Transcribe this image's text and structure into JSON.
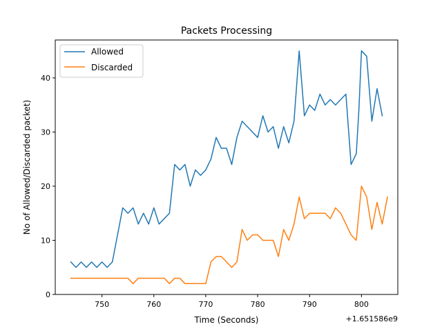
{
  "chart_data": {
    "type": "line",
    "title": "Packets Processing",
    "xlabel": "Time (Seconds)",
    "ylabel": "No of Allowed/Discarded packet)",
    "x_offset_label": "+1.651586e9",
    "xlim": [
      741,
      807
    ],
    "ylim": [
      0,
      47
    ],
    "xticks": [
      750,
      760,
      770,
      780,
      790,
      800
    ],
    "yticks": [
      0,
      10,
      20,
      30,
      40
    ],
    "grid": false,
    "legend_position": "upper left",
    "series": [
      {
        "name": "Allowed",
        "color": "#1f77b4",
        "points": [
          [
            744,
            6
          ],
          [
            745,
            5
          ],
          [
            746,
            6
          ],
          [
            747,
            5
          ],
          [
            748,
            6
          ],
          [
            749,
            5
          ],
          [
            750,
            6
          ],
          [
            751,
            5
          ],
          [
            752,
            6
          ],
          [
            754,
            16
          ],
          [
            755,
            15
          ],
          [
            756,
            16
          ],
          [
            757,
            13
          ],
          [
            758,
            15
          ],
          [
            759,
            13
          ],
          [
            760,
            16
          ],
          [
            761,
            13
          ],
          [
            763,
            15
          ],
          [
            764,
            24
          ],
          [
            765,
            23
          ],
          [
            766,
            24
          ],
          [
            767,
            20
          ],
          [
            768,
            23
          ],
          [
            769,
            22
          ],
          [
            770,
            23
          ],
          [
            771,
            25
          ],
          [
            772,
            29
          ],
          [
            773,
            27
          ],
          [
            774,
            27
          ],
          [
            775,
            24
          ],
          [
            776,
            29
          ],
          [
            777,
            32
          ],
          [
            779,
            30
          ],
          [
            780,
            29
          ],
          [
            781,
            33
          ],
          [
            782,
            30
          ],
          [
            783,
            31
          ],
          [
            784,
            27
          ],
          [
            785,
            31
          ],
          [
            786,
            28
          ],
          [
            787,
            32
          ],
          [
            788,
            45
          ],
          [
            789,
            33
          ],
          [
            790,
            35
          ],
          [
            791,
            34
          ],
          [
            792,
            37
          ],
          [
            793,
            35
          ],
          [
            794,
            36
          ],
          [
            795,
            35
          ],
          [
            797,
            37
          ],
          [
            798,
            24
          ],
          [
            799,
            26
          ],
          [
            799.5,
            34
          ],
          [
            800,
            45
          ],
          [
            801,
            44
          ],
          [
            802,
            32
          ],
          [
            803,
            38
          ],
          [
            804,
            33
          ]
        ]
      },
      {
        "name": "Discarded",
        "color": "#ff7f0e",
        "points": [
          [
            744,
            3
          ],
          [
            755,
            3
          ],
          [
            756,
            2
          ],
          [
            757,
            3
          ],
          [
            762,
            3
          ],
          [
            763,
            2
          ],
          [
            764,
            3
          ],
          [
            765,
            3
          ],
          [
            766,
            2
          ],
          [
            770,
            2
          ],
          [
            771,
            6
          ],
          [
            772,
            7
          ],
          [
            773,
            7
          ],
          [
            775,
            5
          ],
          [
            776,
            6
          ],
          [
            777,
            12
          ],
          [
            778,
            10
          ],
          [
            779,
            11
          ],
          [
            780,
            11
          ],
          [
            781,
            10
          ],
          [
            783,
            10
          ],
          [
            784,
            7
          ],
          [
            785,
            12
          ],
          [
            786,
            10
          ],
          [
            787,
            13
          ],
          [
            788,
            18
          ],
          [
            789,
            14
          ],
          [
            790,
            15
          ],
          [
            793,
            15
          ],
          [
            794,
            14
          ],
          [
            795,
            16
          ],
          [
            796,
            15
          ],
          [
            798,
            11
          ],
          [
            799,
            10
          ],
          [
            800,
            20
          ],
          [
            801,
            18
          ],
          [
            802,
            12
          ],
          [
            803,
            17
          ],
          [
            804,
            13
          ],
          [
            805,
            18
          ]
        ]
      }
    ]
  }
}
